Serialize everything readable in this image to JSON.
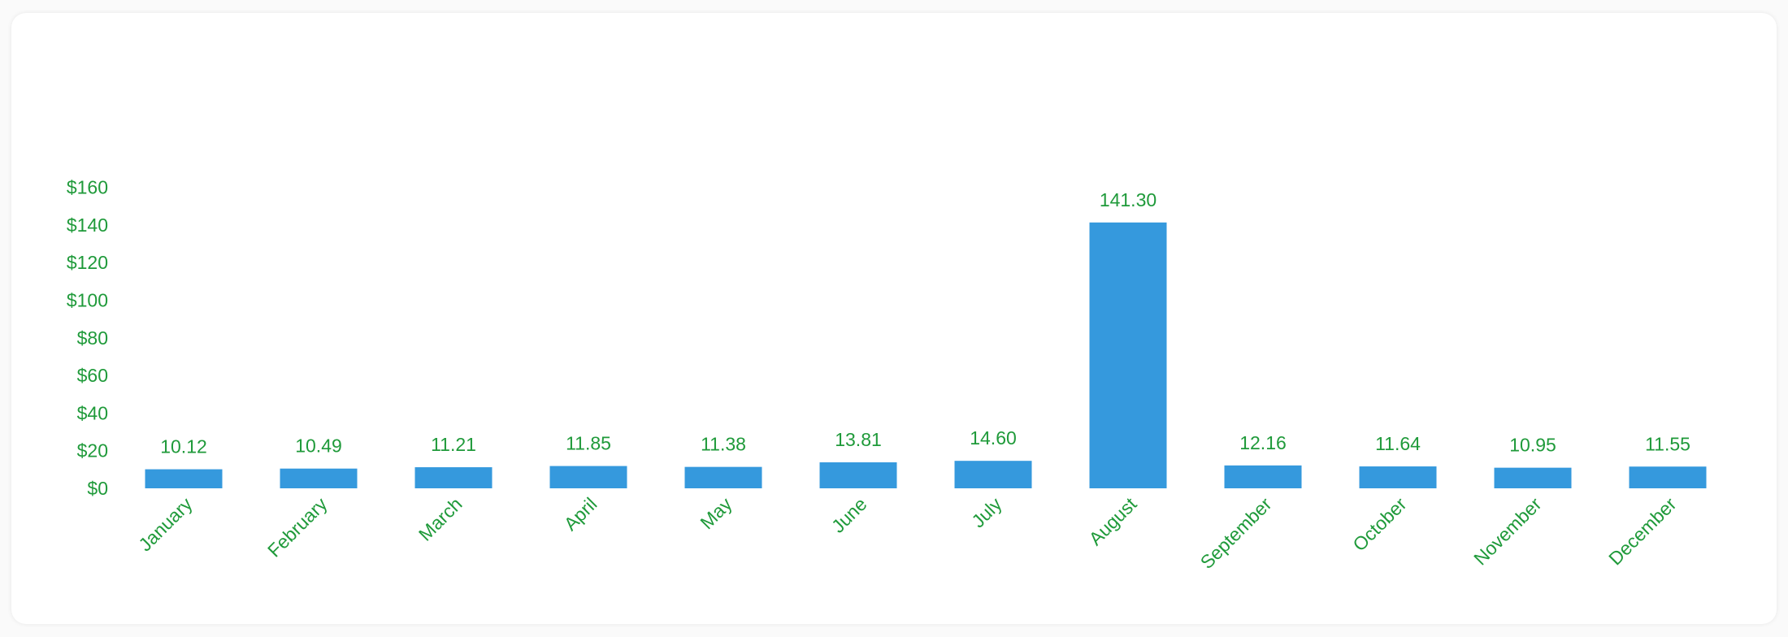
{
  "colors": {
    "bar": "#3599dd",
    "text": "#1f9a3a",
    "card": "#ffffff"
  },
  "chart_data": {
    "type": "bar",
    "categories": [
      "January",
      "February",
      "March",
      "April",
      "May",
      "June",
      "July",
      "August",
      "September",
      "October",
      "November",
      "December"
    ],
    "values": [
      10.12,
      10.49,
      11.21,
      11.85,
      11.38,
      13.81,
      14.6,
      141.3,
      12.16,
      11.64,
      10.95,
      11.55
    ],
    "value_labels": [
      "10.12",
      "10.49",
      "11.21",
      "11.85",
      "11.38",
      "13.81",
      "14.60",
      "141.30",
      "12.16",
      "11.64",
      "10.95",
      "11.55"
    ],
    "y_ticks": [
      0,
      20,
      40,
      60,
      80,
      100,
      120,
      140,
      160
    ],
    "y_tick_labels": [
      "$0",
      "$20",
      "$40",
      "$60",
      "$80",
      "$100",
      "$120",
      "$140",
      "$160"
    ],
    "ylim": [
      0,
      160
    ],
    "grid": false,
    "legend": "none",
    "x_label_rotation": "-45deg"
  }
}
